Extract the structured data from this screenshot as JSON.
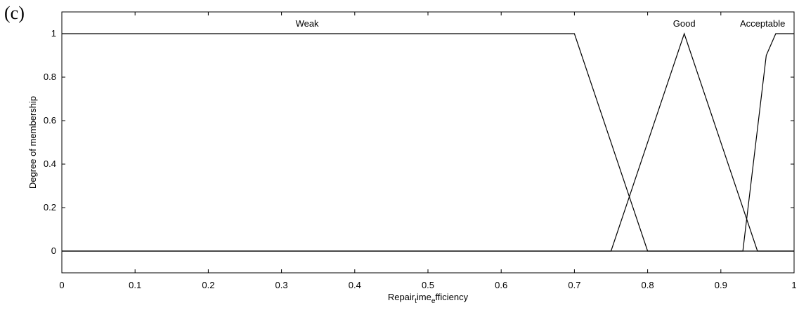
{
  "panel_label": "(c)",
  "chart_data": {
    "type": "line",
    "xlabel_parts": [
      "Repair",
      "t",
      "ime",
      "e",
      "fficiency"
    ],
    "ylabel": "Degree of membership",
    "xlim": [
      0,
      1
    ],
    "ylim": [
      -0.1,
      1.1
    ],
    "x_ticks": [
      0,
      0.1,
      0.2,
      0.3,
      0.4,
      0.5,
      0.6,
      0.7,
      0.8,
      0.9,
      1
    ],
    "x_tick_labels": [
      "0",
      "0.1",
      "0.2",
      "0.3",
      "0.4",
      "0.5",
      "0.6",
      "0.7",
      "0.8",
      "0.9",
      "1"
    ],
    "y_ticks": [
      0,
      0.2,
      0.4,
      0.6,
      0.8,
      1
    ],
    "y_tick_labels": [
      "0",
      "0.2",
      "0.4",
      "0.6",
      "0.8",
      "1"
    ],
    "grid": false,
    "series": [
      {
        "name": "Weak",
        "x": [
          0,
          0.7,
          0.8,
          1
        ],
        "y": [
          1,
          1,
          0,
          0
        ],
        "label_at": [
          0.335,
          1
        ]
      },
      {
        "name": "Good",
        "x": [
          0,
          0.75,
          0.85,
          0.95,
          1
        ],
        "y": [
          0,
          0,
          1,
          0,
          0
        ],
        "label_at": [
          0.85,
          1
        ]
      },
      {
        "name": "Acceptable",
        "x": [
          0,
          0.93,
          0.962,
          0.975,
          1
        ],
        "y": [
          0,
          0,
          0.9,
          1,
          1
        ],
        "label_at": [
          0.957,
          1
        ]
      }
    ],
    "line_color": "#000000"
  }
}
